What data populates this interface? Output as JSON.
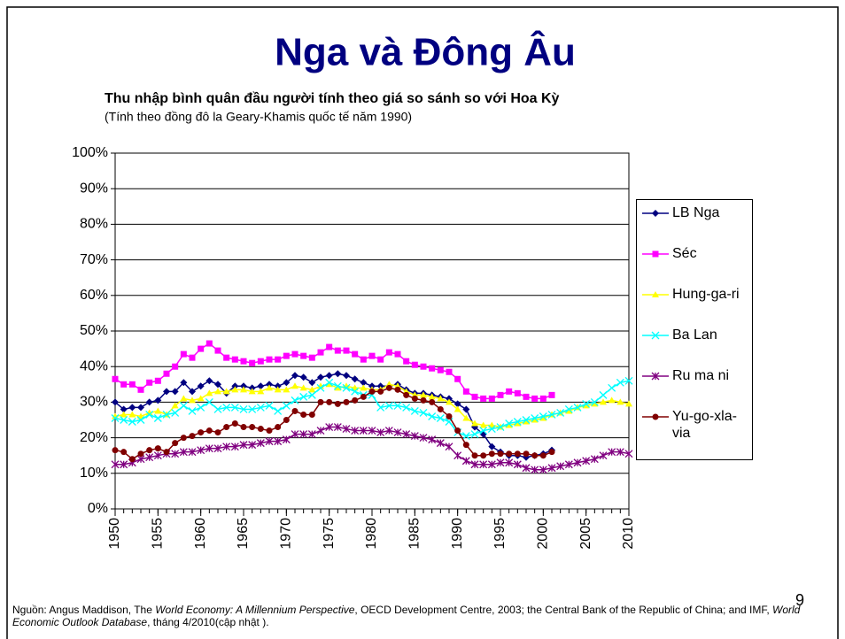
{
  "slide_title": "Nga và Đông Âu",
  "chart_data": {
    "type": "line",
    "title": "Thu nhập bình quân đầu người tính theo giá so sánh so với Hoa Kỳ",
    "subtitle": "(Tính theo đồng đô la Geary-Khamis quốc tế năm 1990)",
    "x": [
      1950,
      1951,
      1952,
      1953,
      1954,
      1955,
      1956,
      1957,
      1958,
      1959,
      1960,
      1961,
      1962,
      1963,
      1964,
      1965,
      1966,
      1967,
      1968,
      1969,
      1970,
      1971,
      1972,
      1973,
      1974,
      1975,
      1976,
      1977,
      1978,
      1979,
      1980,
      1981,
      1982,
      1983,
      1984,
      1985,
      1986,
      1987,
      1988,
      1989,
      1990,
      1991,
      1992,
      1993,
      1994,
      1995,
      1996,
      1997,
      1998,
      1999,
      2000,
      2001,
      2002,
      2003,
      2004,
      2005,
      2006,
      2007,
      2008,
      2009,
      2010
    ],
    "xlim": [
      1950,
      2010
    ],
    "xticks": [
      1950,
      1955,
      1960,
      1965,
      1970,
      1975,
      1980,
      1985,
      1990,
      1995,
      2000,
      2005,
      2010
    ],
    "ylim": [
      0,
      100
    ],
    "yticks": [
      {
        "value": 0,
        "label": "0%"
      },
      {
        "value": 10,
        "label": "10%"
      },
      {
        "value": 20,
        "label": "20%"
      },
      {
        "value": 30,
        "label": "30%"
      },
      {
        "value": 40,
        "label": "40%"
      },
      {
        "value": 50,
        "label": "50%"
      },
      {
        "value": 60,
        "label": "60%"
      },
      {
        "value": 70,
        "label": "70%"
      },
      {
        "value": 80,
        "label": "80%"
      },
      {
        "value": 90,
        "label": "90%"
      },
      {
        "value": 100,
        "label": "100%"
      }
    ],
    "grid": true,
    "legend": "right",
    "series": [
      {
        "name": "LB Nga",
        "color": "#000080",
        "marker": "diamond",
        "values": [
          30,
          28,
          28.5,
          28.5,
          30,
          30.5,
          33,
          33,
          35.5,
          33,
          34.5,
          36,
          35,
          32.5,
          34.5,
          34.5,
          34,
          34.5,
          35,
          34.5,
          35.5,
          37.5,
          37,
          35.5,
          37,
          37.5,
          38,
          37.5,
          36.5,
          35.5,
          34.5,
          34.5,
          34.5,
          35,
          33.5,
          32.5,
          32.5,
          32,
          31.5,
          31,
          29.5,
          28,
          23,
          21,
          17.5,
          16,
          15,
          15,
          14.5,
          15,
          15.5,
          16.5,
          null,
          null,
          null,
          null,
          null,
          null,
          null,
          null,
          null
        ]
      },
      {
        "name": "Séc",
        "color": "#ff00ff",
        "marker": "square",
        "values": [
          36.5,
          35,
          35,
          33.5,
          35.5,
          36,
          38,
          40,
          43.5,
          42.5,
          45,
          46.5,
          44.5,
          42.5,
          42,
          41.5,
          41,
          41.5,
          42,
          42,
          43,
          43.5,
          43,
          42.5,
          44,
          45.5,
          44.5,
          44.5,
          43.5,
          42,
          43,
          42,
          44,
          43.5,
          41.5,
          40.5,
          40,
          39.5,
          39,
          38.5,
          36.5,
          33,
          31.5,
          31,
          31,
          32,
          33,
          32.5,
          31.5,
          31,
          31,
          32,
          null,
          null,
          null,
          null,
          null,
          null,
          null,
          null,
          null
        ]
      },
      {
        "name": "Hung-ga-ri",
        "color": "#ffff00",
        "marker": "triangle",
        "values": [
          26,
          26.5,
          26.5,
          26,
          27,
          27.5,
          26.5,
          29,
          31,
          30.5,
          31,
          32.5,
          33,
          33,
          33.5,
          33.5,
          33,
          33,
          34,
          33.5,
          33.5,
          34.5,
          34,
          33.5,
          34.5,
          35,
          34,
          34.5,
          34,
          34,
          33.5,
          33.5,
          35,
          34.5,
          33,
          32,
          32,
          31.5,
          31,
          30,
          28,
          25.5,
          24,
          23.5,
          23.5,
          23,
          23.5,
          24,
          24.5,
          25,
          25.5,
          26.5,
          27,
          27.5,
          28.5,
          29,
          29.5,
          30,
          30.5,
          30,
          29.5
        ]
      },
      {
        "name": "Ba Lan",
        "color": "#00ffff",
        "marker": "x",
        "values": [
          25.5,
          25,
          24.5,
          25,
          26.5,
          25.5,
          26.5,
          27,
          29,
          27.5,
          28.5,
          30,
          28,
          28.5,
          28.5,
          28,
          28,
          28.5,
          29,
          27.5,
          29,
          30.5,
          31.5,
          32,
          34,
          35.5,
          34.5,
          34,
          33,
          32,
          32,
          28.5,
          29,
          29,
          28.5,
          27.5,
          27,
          26,
          25.5,
          24.5,
          21.5,
          20.5,
          21,
          22,
          22.5,
          23,
          24,
          24.5,
          25,
          25.5,
          26,
          26.5,
          27,
          28,
          28.5,
          29.5,
          30,
          32,
          34,
          35.5,
          36
        ]
      },
      {
        "name": "Ru ma ni",
        "color": "#800080",
        "marker": "star",
        "values": [
          12.5,
          12.5,
          13,
          14,
          14.5,
          15,
          15.5,
          15.5,
          16,
          16,
          16.5,
          17,
          17,
          17.5,
          17.5,
          18,
          18,
          18.5,
          19,
          19,
          19.5,
          21,
          21,
          21,
          22,
          23,
          23,
          22.5,
          22,
          22,
          22,
          21.5,
          22,
          21.5,
          21,
          20.5,
          20,
          19.5,
          18.5,
          17.5,
          15,
          13.5,
          12.5,
          12.5,
          12.5,
          13,
          13,
          12.5,
          11.5,
          11,
          11,
          11.5,
          12,
          12.5,
          13,
          13.5,
          14,
          15,
          16,
          16,
          15.5
        ]
      },
      {
        "name": "Yu-go-xla-via",
        "color": "#800000",
        "marker": "circle",
        "values": [
          16.5,
          16,
          14,
          15.5,
          16.5,
          17,
          16,
          18.5,
          20,
          20.5,
          21.5,
          22,
          21.5,
          23,
          24,
          23,
          23,
          22.5,
          22,
          23,
          25,
          27.5,
          26.5,
          26.5,
          30,
          30,
          29.5,
          30,
          30.5,
          31.5,
          33,
          33,
          34,
          33.5,
          32,
          31,
          30.5,
          30,
          28,
          26,
          22,
          18,
          15,
          15,
          15.5,
          15.5,
          15.5,
          15.5,
          15.5,
          15,
          15,
          16,
          null,
          null,
          null,
          null,
          null,
          null,
          null,
          null,
          null
        ]
      }
    ]
  },
  "footer": {
    "segments": [
      {
        "text": "Nguồn: Angus Maddison, The ",
        "italic": false
      },
      {
        "text": "World Economy: A Millennium Perspective",
        "italic": true
      },
      {
        "text": ", OECD Development Centre, 2003; the Central Bank of the Republic of China; and IMF, ",
        "italic": false
      },
      {
        "text": "World Economic Outlook Database",
        "italic": true
      },
      {
        "text": ", tháng 4/2010(cập nhật ).",
        "italic": false
      }
    ]
  },
  "page_number": "9"
}
